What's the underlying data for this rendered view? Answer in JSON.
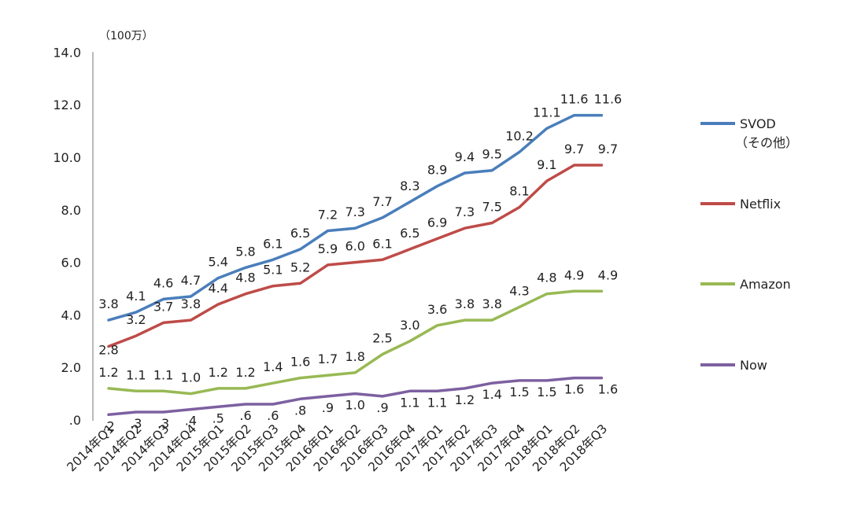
{
  "chart_data": {
    "type": "line",
    "unit_label": "（100万）",
    "ylim": [
      0,
      14
    ],
    "yticks": [
      ".0",
      "2.0",
      "4.0",
      "6.0",
      "8.0",
      "10.0",
      "12.0",
      "14.0"
    ],
    "ytick_values": [
      0,
      2,
      4,
      6,
      8,
      10,
      12,
      14
    ],
    "grid": false,
    "categories": [
      "2014年Q1",
      "2014年Q2",
      "2014年Q3",
      "2014年Q4",
      "2015年Q1",
      "2015年Q2",
      "2015年Q3",
      "2015年Q4",
      "2016年Q1",
      "2016年Q2",
      "2016年Q3",
      "2016年Q4",
      "2017年Q1",
      "2017年Q2",
      "2017年Q3",
      "2017年Q4",
      "2018年Q1",
      "2018年Q2",
      "2018年Q3"
    ],
    "legend_position": "right",
    "series": [
      {
        "name": "SVOD",
        "name_line2": "（その他）",
        "color": "#4a7ebb",
        "values": [
          3.8,
          4.1,
          4.6,
          4.7,
          5.4,
          5.8,
          6.1,
          6.5,
          7.2,
          7.3,
          7.7,
          8.3,
          8.9,
          9.4,
          9.5,
          10.2,
          11.1,
          11.6,
          11.6
        ],
        "labels": [
          "3.8",
          "4.1",
          "4.6",
          "4.7",
          "5.4",
          "5.8",
          "6.1",
          "6.5",
          "7.2",
          "7.3",
          "7.7",
          "8.3",
          "8.9",
          "9.4",
          "9.5",
          "10.2",
          "11.1",
          "11.6",
          "11.6"
        ]
      },
      {
        "name": "Netflix",
        "color": "#be4b48",
        "values": [
          2.8,
          3.2,
          3.7,
          3.8,
          4.4,
          4.8,
          5.1,
          5.2,
          5.9,
          6.0,
          6.1,
          6.5,
          6.9,
          7.3,
          7.5,
          8.1,
          9.1,
          9.7,
          9.7
        ],
        "labels": [
          "2.8",
          "3.2",
          "3.7",
          "3.8",
          "4.4",
          "4.8",
          "5.1",
          "5.2",
          "5.9",
          "6.0",
          "6.1",
          "6.5",
          "6.9",
          "7.3",
          "7.5",
          "8.1",
          "9.1",
          "9.7",
          "9.7"
        ]
      },
      {
        "name": "Amazon",
        "color": "#98b954",
        "values": [
          1.2,
          1.1,
          1.1,
          1.0,
          1.2,
          1.2,
          1.4,
          1.6,
          1.7,
          1.8,
          2.5,
          3.0,
          3.6,
          3.8,
          3.8,
          4.3,
          4.8,
          4.9,
          4.9
        ],
        "labels": [
          "1.2",
          "1.1",
          "1.1",
          "1.0",
          "1.2",
          "1.2",
          "1.4",
          "1.6",
          "1.7",
          "1.8",
          "2.5",
          "3.0",
          "3.6",
          "3.8",
          "3.8",
          "4.3",
          "4.8",
          "4.9",
          "4.9"
        ]
      },
      {
        "name": "Now",
        "color": "#7d60a0",
        "values": [
          0.2,
          0.3,
          0.3,
          0.4,
          0.5,
          0.6,
          0.6,
          0.8,
          0.9,
          1.0,
          0.9,
          1.1,
          1.1,
          1.2,
          1.4,
          1.5,
          1.5,
          1.6,
          1.6
        ],
        "labels": [
          ".2",
          ".3",
          ".3",
          ".4",
          ".5",
          ".6",
          ".6",
          ".8",
          ".9",
          "1.0",
          ".9",
          "1.1",
          "1.1",
          "1.2",
          "1.4",
          "1.5",
          "1.5",
          "1.6",
          "1.6"
        ]
      }
    ]
  }
}
